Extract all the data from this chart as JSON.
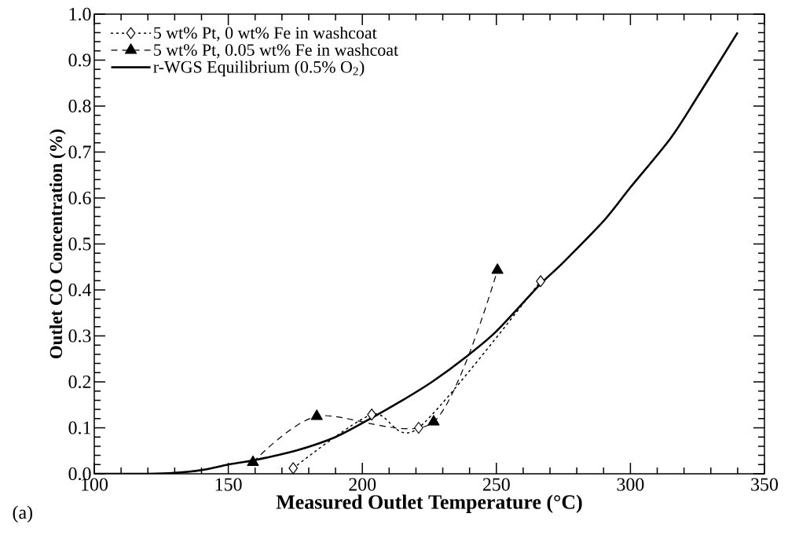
{
  "chart_data": {
    "type": "line",
    "xlabel": "Measured Outlet Temperature  (°C)",
    "ylabel": "Outlet CO Concentration  (%)",
    "annotations": [
      "(a)"
    ],
    "xlim": [
      100,
      350
    ],
    "ylim": [
      0,
      1
    ],
    "xticks": [
      100,
      150,
      200,
      250,
      300,
      350
    ],
    "yticks": [
      {
        "value": 0,
        "label": "0.0"
      },
      0.1,
      0.2,
      0.3,
      0.4,
      0.5,
      0.6,
      0.7,
      0.8,
      0.9,
      {
        "value": 1,
        "label": "1.0"
      }
    ],
    "legend": "top left",
    "grid": false,
    "series": [
      {
        "name": "5 wt% Pt, 0 wt% Fe in washcoat",
        "color": "#000000",
        "marker": "diamond",
        "line_style": "dotted",
        "x": [
          174.2,
          203.5,
          221,
          266.5
        ],
        "values": [
          0.012,
          0.129,
          0.1,
          0.419
        ]
      },
      {
        "name": "5 wt% Pt, 0.05 wt% Fe in washcoat",
        "color": "#000000",
        "marker": "triangle",
        "line_style": "dashed",
        "x": [
          159.2,
          183,
          226.6,
          250.4
        ],
        "values": [
          0.025,
          0.125,
          0.113,
          0.443
        ]
      },
      {
        "name": "r-WGS Equilibrium (0.5% O$_{2}$)",
        "color": "#000000",
        "marker": "none",
        "line_style": "solid",
        "x": [
          100,
          120,
          130,
          140,
          150,
          160,
          175,
          190,
          203,
          215,
          226,
          238.6,
          250,
          266,
          275,
          290,
          300,
          315,
          325,
          340
        ],
        "values": [
          0,
          0,
          0.002,
          0.008,
          0.02,
          0.03,
          0.05,
          0.08,
          0.12,
          0.16,
          0.2,
          0.254,
          0.31,
          0.41,
          0.46,
          0.55,
          0.623,
          0.73,
          0.82,
          0.96
        ]
      }
    ]
  }
}
